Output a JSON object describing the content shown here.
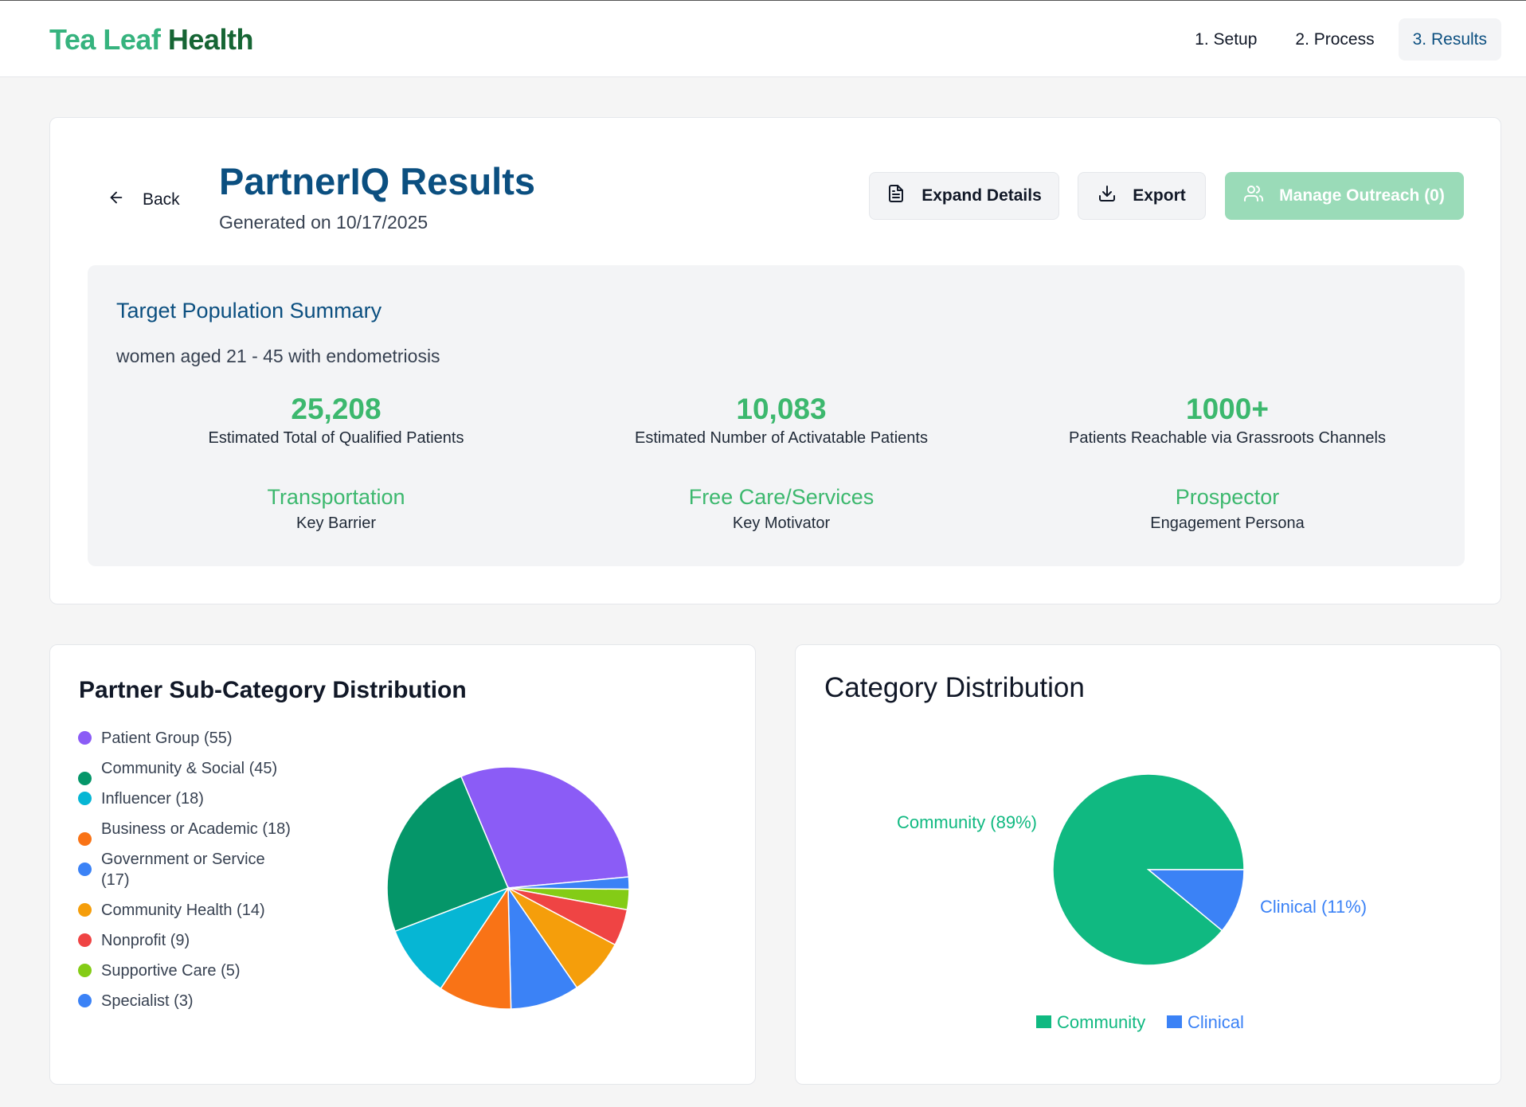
{
  "brand": {
    "part1": "Tea Leaf",
    "part2": "Health"
  },
  "nav": {
    "steps": [
      "1. Setup",
      "2. Process",
      "3. Results"
    ]
  },
  "header": {
    "back_label": "Back",
    "title": "PartnerIQ Results",
    "generated": "Generated on 10/17/2025",
    "expand_label": "Expand Details",
    "export_label": "Export",
    "outreach_label": "Manage Outreach (0)"
  },
  "summary": {
    "title": "Target Population Summary",
    "description": "women aged 21 - 45 with endometriosis",
    "stats": [
      {
        "value": "25,208",
        "label": "Estimated Total of Qualified Patients"
      },
      {
        "value": "10,083",
        "label": "Estimated Number of Activatable Patients"
      },
      {
        "value": "1000+",
        "label": "Patients Reachable via Grassroots Channels"
      }
    ],
    "insights": [
      {
        "value": "Transportation",
        "label": "Key Barrier"
      },
      {
        "value": "Free Care/Services",
        "label": "Key Motivator"
      },
      {
        "value": "Prospector",
        "label": "Engagement Persona"
      }
    ]
  },
  "colors": {
    "brand_green": "#36b37e",
    "brand_dark": "#166534",
    "primary_blue": "#0b4f80",
    "stat_green": "#3cb86e",
    "community": "#10b981",
    "clinical": "#3b82f6"
  },
  "chart_data": [
    {
      "type": "pie",
      "title": "Partner Sub-Category Distribution",
      "legend_position": "left",
      "categories": [
        "Patient Group (55)",
        "Community & Social (45)",
        "Influencer (18)",
        "Business or Academic (18)",
        "Government or Service (17)",
        "Community Health (14)",
        "Nonprofit (9)",
        "Supportive Care (5)",
        "Specialist (3)"
      ],
      "values": [
        55,
        45,
        18,
        18,
        17,
        14,
        9,
        5,
        3
      ],
      "colors": [
        "#8b5cf6",
        "#059669",
        "#06b6d4",
        "#f97316",
        "#3b82f6",
        "#f59e0b",
        "#ef4444",
        "#84cc16",
        "#3b82f6"
      ],
      "order_clockwise": [
        "Patient Group (55)",
        "Specialist (3)",
        "Supportive Care (5)",
        "Nonprofit (9)",
        "Community Health (14)",
        "Government or Service (17)",
        "Business or Academic (18)",
        "Influencer (18)",
        "Community & Social (45)"
      ]
    },
    {
      "type": "pie",
      "title": "Category Distribution",
      "legend_position": "bottom",
      "categories": [
        "Community",
        "Clinical"
      ],
      "values": [
        89,
        11
      ],
      "slice_labels": [
        "Community (89%)",
        "Clinical (11%)"
      ],
      "colors": [
        "#10b981",
        "#3b82f6"
      ]
    }
  ]
}
